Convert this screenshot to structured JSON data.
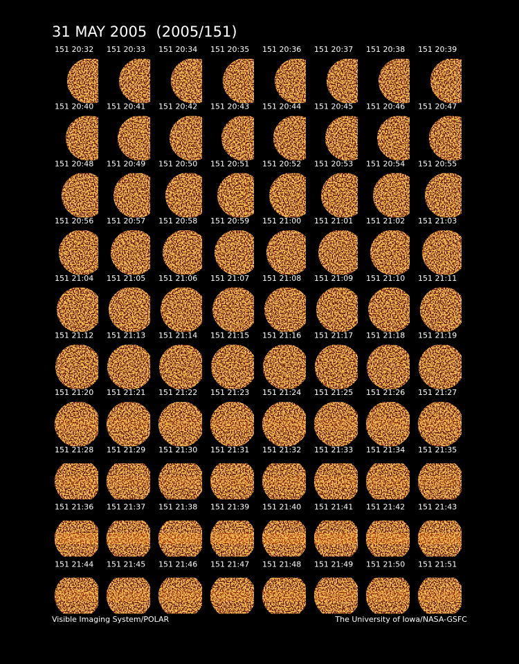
{
  "header": {
    "title": "31 MAY 2005  (2005/151)"
  },
  "frames": [
    "151 20:32",
    "151 20:33",
    "151 20:34",
    "151 20:35",
    "151 20:36",
    "151 20:37",
    "151 20:38",
    "151 20:39",
    "151 20:40",
    "151 20:41",
    "151 20:42",
    "151 20:43",
    "151 20:44",
    "151 20:45",
    "151 20:46",
    "151 20:47",
    "151 20:48",
    "151 20:49",
    "151 20:50",
    "151 20:51",
    "151 20:52",
    "151 20:53",
    "151 20:54",
    "151 20:55",
    "151 20:56",
    "151 20:57",
    "151 20:58",
    "151 20:59",
    "151 21:00",
    "151 21:01",
    "151 21:02",
    "151 21:03",
    "151 21:04",
    "151 21:05",
    "151 21:06",
    "151 21:07",
    "151 21:08",
    "151 21:09",
    "151 21:10",
    "151 21:11",
    "151 21:12",
    "151 21:13",
    "151 21:14",
    "151 21:15",
    "151 21:16",
    "151 21:17",
    "151 21:18",
    "151 21:19",
    "151 21:20",
    "151 21:21",
    "151 21:22",
    "151 21:23",
    "151 21:24",
    "151 21:25",
    "151 21:26",
    "151 21:27",
    "151 21:28",
    "151 21:29",
    "151 21:30",
    "151 21:31",
    "151 21:32",
    "151 21:33",
    "151 21:34",
    "151 21:35",
    "151 21:36",
    "151 21:37",
    "151 21:38",
    "151 21:39",
    "151 21:40",
    "151 21:41",
    "151 21:42",
    "151 21:43",
    "151 21:44",
    "151 21:45",
    "151 21:46",
    "151 21:47",
    "151 21:48",
    "151 21:49",
    "151 21:50",
    "151 21:51"
  ],
  "footer": {
    "left": "Visible Imaging System/POLAR",
    "right": "The University of Iowa/NASA-GSFC"
  }
}
